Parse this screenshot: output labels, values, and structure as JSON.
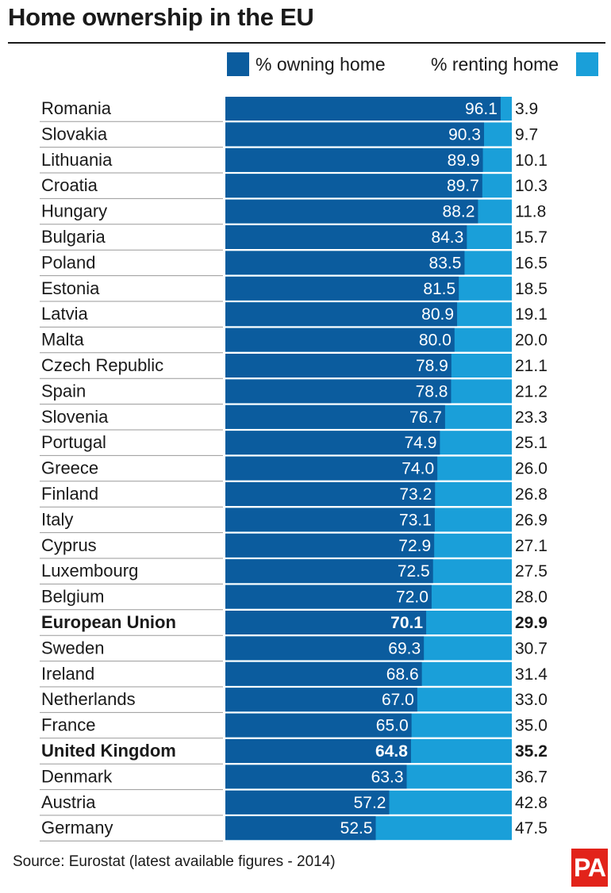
{
  "chart_data": {
    "type": "bar",
    "orientation": "horizontal",
    "stacked": true,
    "title": "Home ownership in the EU",
    "categories": [
      "Romania",
      "Slovakia",
      "Lithuania",
      "Croatia",
      "Hungary",
      "Bulgaria",
      "Poland",
      "Estonia",
      "Latvia",
      "Malta",
      "Czech Republic",
      "Spain",
      "Slovenia",
      "Portugal",
      "Greece",
      "Finland",
      "Italy",
      "Cyprus",
      "Luxembourg",
      "Belgium",
      "European Union",
      "Sweden",
      "Ireland",
      "Netherlands",
      "France",
      "United Kingdom",
      "Denmark",
      "Austria",
      "Germany"
    ],
    "highlighted": [
      "European Union",
      "United Kingdom"
    ],
    "series": [
      {
        "name": "% owning home",
        "color": "#0b5c9e",
        "values": [
          "96.1",
          "90.3",
          "89.9",
          "89.7",
          "88.2",
          "84.3",
          "83.5",
          "81.5",
          "80.9",
          "80.0",
          "78.9",
          "78.8",
          "76.7",
          "74.9",
          "74.0",
          "73.2",
          "73.1",
          "72.9",
          "72.5",
          "72.0",
          "70.1",
          "69.3",
          "68.6",
          "67.0",
          "65.0",
          "64.8",
          "63.3",
          "57.2",
          "52.5"
        ]
      },
      {
        "name": "% renting home",
        "color": "#1a9fd9",
        "values": [
          "3.9",
          "9.7",
          "10.1",
          "10.3",
          "11.8",
          "15.7",
          "16.5",
          "18.5",
          "19.1",
          "20.0",
          "21.1",
          "21.2",
          "23.3",
          "25.1",
          "26.0",
          "26.8",
          "26.9",
          "27.1",
          "27.5",
          "28.0",
          "29.9",
          "30.7",
          "31.4",
          "33.0",
          "35.0",
          "35.2",
          "36.7",
          "42.8",
          "47.5"
        ]
      }
    ],
    "xlim": [
      0,
      100
    ],
    "legend": "top",
    "grid": false
  },
  "source": "Source: Eurostat (latest available figures - 2014)",
  "logo": "PA"
}
